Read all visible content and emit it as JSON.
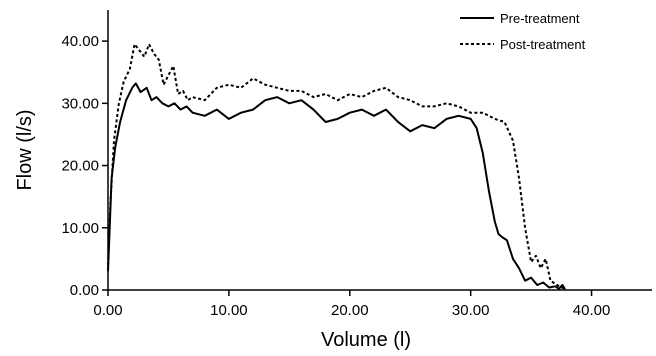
{
  "chart_data": {
    "type": "line",
    "xlabel": "Volume (l)",
    "ylabel": "Flow (l/s)",
    "xlim": [
      0,
      45
    ],
    "ylim": [
      0,
      45
    ],
    "x_ticks": [
      0,
      10,
      20,
      30,
      40
    ],
    "x_tick_labels": [
      "0.00",
      "10.00",
      "20.00",
      "30.00",
      "40.00"
    ],
    "y_ticks": [
      0,
      10,
      20,
      30,
      40
    ],
    "y_tick_labels": [
      "0.00",
      "10.00",
      "20.00",
      "30.00",
      "40.00"
    ],
    "grid": false,
    "legend_position": "top-right",
    "series": [
      {
        "name": "Pre-treatment",
        "style": "solid",
        "color": "#000000",
        "x": [
          0.0,
          0.1,
          0.3,
          0.6,
          1.0,
          1.5,
          2.0,
          2.3,
          2.7,
          3.2,
          3.6,
          4.0,
          4.5,
          5.0,
          5.5,
          6.0,
          6.5,
          7.0,
          8.0,
          9.0,
          10.0,
          11.0,
          12.0,
          13.0,
          14.0,
          15.0,
          16.0,
          17.0,
          18.0,
          19.0,
          20.0,
          21.0,
          22.0,
          23.0,
          24.0,
          25.0,
          26.0,
          27.0,
          28.0,
          29.0,
          30.0,
          30.5,
          31.0,
          31.5,
          32.0,
          32.3,
          32.6,
          33.0,
          33.5,
          34.0,
          34.5,
          35.0,
          35.5,
          36.0,
          36.5,
          37.0,
          37.3,
          37.6,
          37.8
        ],
        "y": [
          3.0,
          8.0,
          18.0,
          23.0,
          27.0,
          30.5,
          32.5,
          33.2,
          31.8,
          32.5,
          30.5,
          31.0,
          30.0,
          29.5,
          30.0,
          29.0,
          29.5,
          28.5,
          28.0,
          29.0,
          27.5,
          28.5,
          29.0,
          30.5,
          31.0,
          30.0,
          30.5,
          29.0,
          27.0,
          27.5,
          28.5,
          29.0,
          28.0,
          29.0,
          27.0,
          25.5,
          26.5,
          26.0,
          27.5,
          28.0,
          27.5,
          26.0,
          22.0,
          16.0,
          11.0,
          9.0,
          8.5,
          8.0,
          5.0,
          3.5,
          1.5,
          2.0,
          0.8,
          1.2,
          0.4,
          0.6,
          0.2,
          0.8,
          0.1
        ]
      },
      {
        "name": "Post-treatment",
        "style": "dashed",
        "color": "#000000",
        "x": [
          0.0,
          0.2,
          0.5,
          0.9,
          1.3,
          1.8,
          2.2,
          2.6,
          3.0,
          3.4,
          3.8,
          4.2,
          4.6,
          5.0,
          5.4,
          5.8,
          6.2,
          6.6,
          7.0,
          8.0,
          9.0,
          10.0,
          11.0,
          12.0,
          13.0,
          14.0,
          15.0,
          16.0,
          17.0,
          18.0,
          19.0,
          20.0,
          21.0,
          22.0,
          23.0,
          24.0,
          25.0,
          26.0,
          27.0,
          28.0,
          29.0,
          30.0,
          31.0,
          32.0,
          32.8,
          33.5,
          34.0,
          34.5,
          35.0,
          35.4,
          35.8,
          36.2,
          36.6,
          37.0,
          37.4,
          37.8
        ],
        "y": [
          4.0,
          14.0,
          24.0,
          30.0,
          33.5,
          35.5,
          39.5,
          38.5,
          37.5,
          39.5,
          38.0,
          37.0,
          33.0,
          34.5,
          36.0,
          31.5,
          32.0,
          30.5,
          31.0,
          30.5,
          32.5,
          33.0,
          32.5,
          34.0,
          33.0,
          32.5,
          32.0,
          32.0,
          31.0,
          31.5,
          30.5,
          31.5,
          31.0,
          32.0,
          32.5,
          31.0,
          30.5,
          29.5,
          29.5,
          30.0,
          29.5,
          28.5,
          28.5,
          27.5,
          27.0,
          24.0,
          18.0,
          10.0,
          4.5,
          5.5,
          3.5,
          5.0,
          1.5,
          1.0,
          0.5,
          0.2
        ]
      }
    ]
  }
}
